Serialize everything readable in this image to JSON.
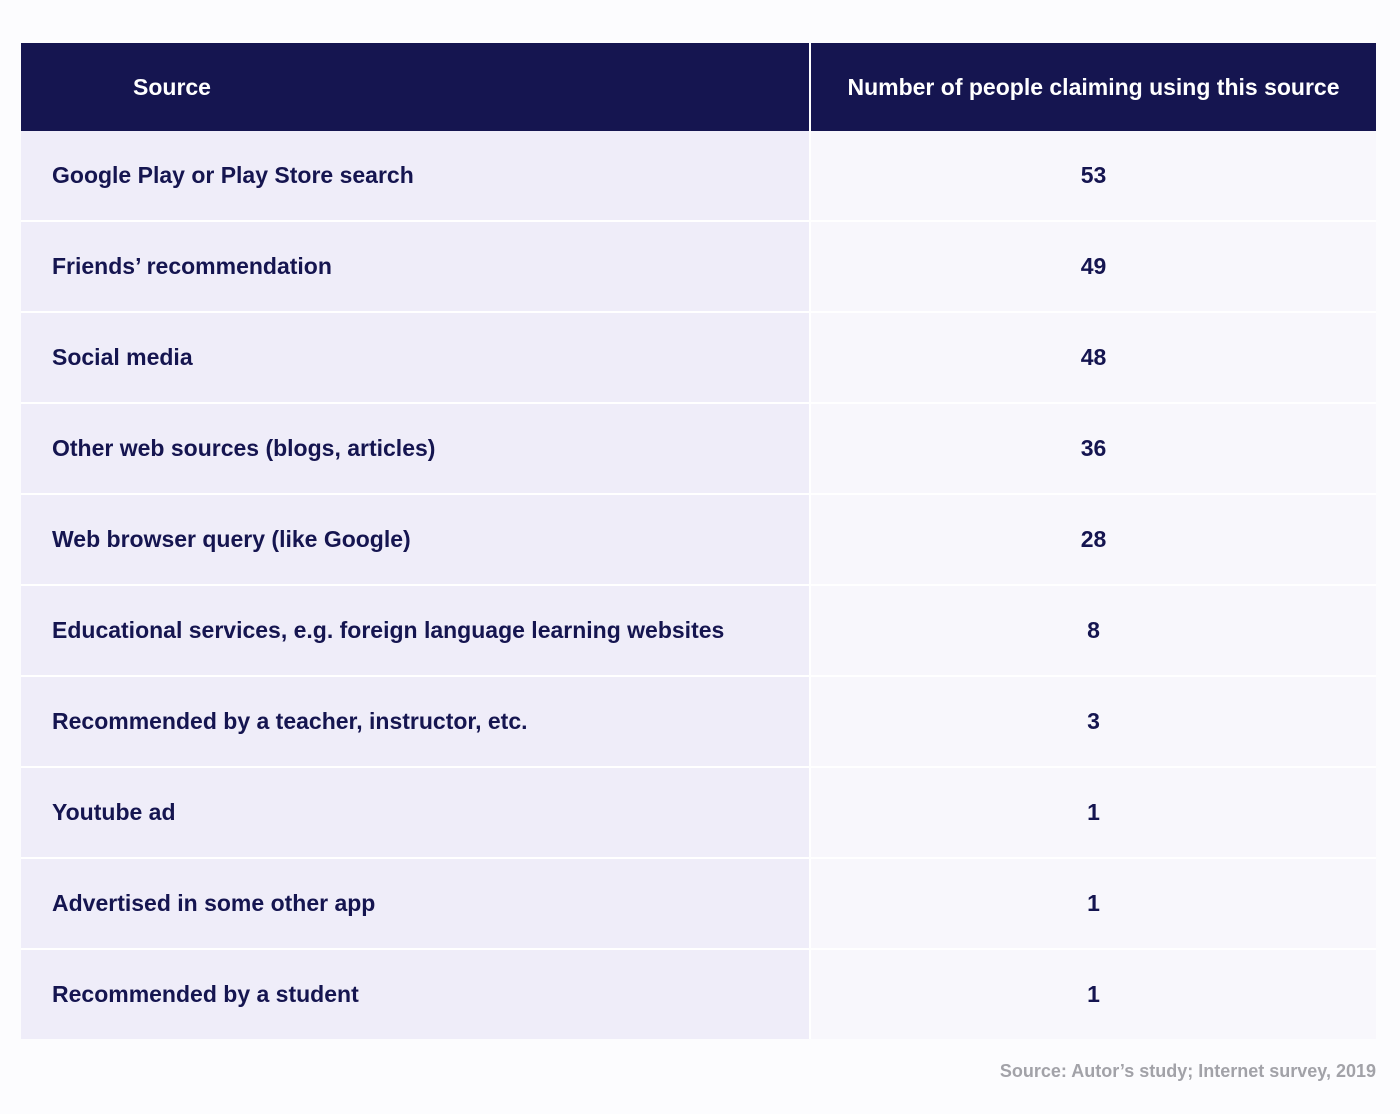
{
  "table": {
    "headers": {
      "source": "Source",
      "count": "Number of people claiming using this source"
    },
    "rows": [
      {
        "source": "Google Play or Play Store search",
        "count": "53"
      },
      {
        "source": "Friends’ recommendation",
        "count": "49"
      },
      {
        "source": "Social media",
        "count": "48"
      },
      {
        "source": "Other web sources (blogs, articles)",
        "count": "36"
      },
      {
        "source": "Web browser query (like Google)",
        "count": "28"
      },
      {
        "source": "Educational services, e.g. foreign language learning websites",
        "count": "8"
      },
      {
        "source": "Recommended by a teacher, instructor, etc.",
        "count": "3"
      },
      {
        "source": "Youtube ad",
        "count": "1"
      },
      {
        "source": "Advertised in some other app",
        "count": "1"
      },
      {
        "source": "Recommended by a student",
        "count": "1"
      }
    ]
  },
  "footnote": "Source: Autor’s study; Internet survey, 2019",
  "colors": {
    "header_bg": "#151550",
    "source_cell_bg": "#efedf9",
    "count_cell_bg": "#f8f7fc",
    "text": "#151550",
    "footnote": "#a2a2a8"
  }
}
